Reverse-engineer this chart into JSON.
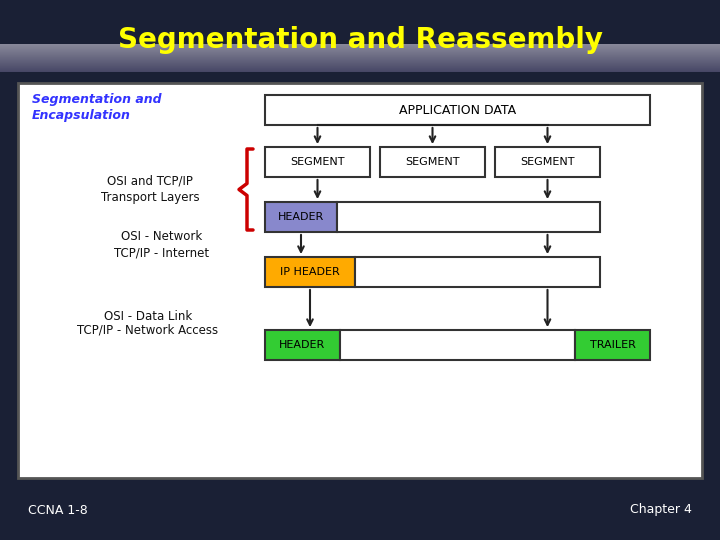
{
  "title": "Segmentation and Reassembly",
  "title_color": "#FFFF00",
  "bg_color": "#1a2035",
  "panel_bg": "#ffffff",
  "panel_border": "#555555",
  "ccna_text": "CCNA 1-8",
  "chapter_text": "Chapter 4",
  "footer_text_color": "#ffffff",
  "seg_enc_line1": "Segmentation and",
  "seg_enc_line2": "Encapsulation",
  "seg_enc_color": "#3333ff",
  "app_data_label": "APPLICATION DATA",
  "segment_label": "SEGMENT",
  "header_label": "HEADER",
  "ip_header_label": "IP HEADER",
  "header2_label": "HEADER",
  "trailer_label": "TRAILER",
  "osi_tcp_line1": "OSI and TCP/IP",
  "osi_tcp_line2": "Transport Layers",
  "osi_network_line1": "OSI - Network",
  "osi_network_line2": "TCP/IP - Internet",
  "osi_datalink_line1": "OSI - Data Link",
  "osi_datalink_line2": "TCP/IP - Network Access",
  "header_fill": "#8888cc",
  "ip_header_fill": "#ffaa00",
  "green_fill": "#33cc33",
  "white_fill": "#ffffff",
  "box_border": "#333333",
  "arrow_color": "#222222",
  "brace_color": "#cc0000",
  "label_color": "#111111"
}
